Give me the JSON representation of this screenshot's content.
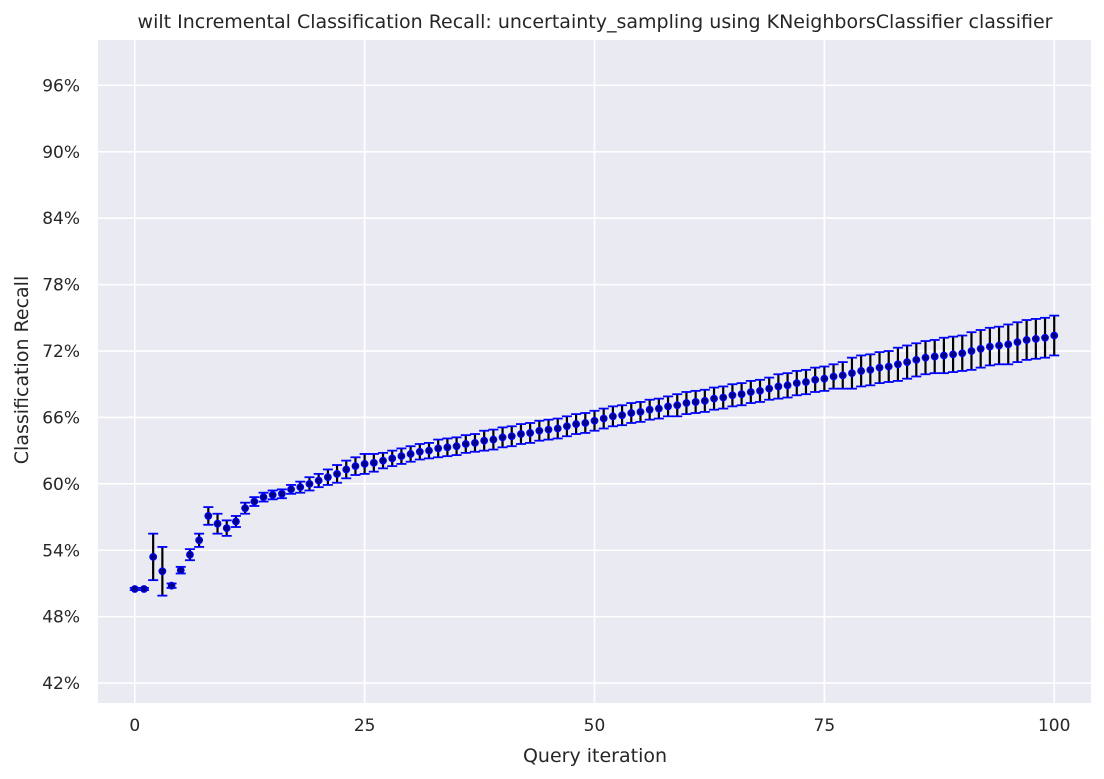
{
  "chart_data": {
    "type": "scatter",
    "title": "wilt Incremental Classification Recall: uncertainty_sampling using KNeighborsClassifier classifier",
    "xlabel": "Query iteration",
    "ylabel": "Classification Recall",
    "xlim": [
      -4,
      104
    ],
    "ylim": [
      40.2,
      100.1
    ],
    "x_ticks": [
      0,
      25,
      50,
      75,
      100
    ],
    "x_tick_labels": [
      "0",
      "25",
      "50",
      "75",
      "100"
    ],
    "y_ticks": [
      42,
      48,
      54,
      60,
      66,
      72,
      78,
      84,
      90,
      96
    ],
    "y_tick_labels": [
      "42%",
      "48%",
      "54%",
      "60%",
      "66%",
      "72%",
      "78%",
      "84%",
      "90%",
      "96%"
    ],
    "grid": true,
    "legend": "none",
    "colors": {
      "background": "#eaeaf2",
      "grid": "#ffffff",
      "error_bar": "#000000",
      "cap": "#0000ff",
      "marker": "#00008b",
      "marker_edge": "#0000ff"
    },
    "series": [
      {
        "x": [
          0,
          1,
          2,
          3,
          4,
          5,
          6,
          7,
          8,
          9,
          10,
          11,
          12,
          13,
          14,
          15,
          16,
          17,
          18,
          19,
          20,
          21,
          22,
          23,
          24,
          25,
          26,
          27,
          28,
          29,
          30,
          31,
          32,
          33,
          34,
          35,
          36,
          37,
          38,
          39,
          40,
          41,
          42,
          43,
          44,
          45,
          46,
          47,
          48,
          49,
          50,
          51,
          52,
          53,
          54,
          55,
          56,
          57,
          58,
          59,
          60,
          61,
          62,
          63,
          64,
          65,
          66,
          67,
          68,
          69,
          70,
          71,
          72,
          73,
          74,
          75,
          76,
          77,
          78,
          79,
          80,
          81,
          82,
          83,
          84,
          85,
          86,
          87,
          88,
          89,
          90,
          91,
          92,
          93,
          94,
          95,
          96,
          97,
          98,
          99,
          100
        ],
        "values": [
          50.5,
          50.5,
          53.4,
          52.1,
          50.8,
          52.2,
          53.6,
          54.9,
          57.1,
          56.4,
          56.0,
          56.6,
          57.8,
          58.4,
          58.8,
          59.0,
          59.1,
          59.5,
          59.7,
          60.0,
          60.3,
          60.6,
          60.9,
          61.3,
          61.6,
          61.8,
          61.9,
          62.1,
          62.3,
          62.5,
          62.7,
          62.9,
          63.0,
          63.2,
          63.3,
          63.4,
          63.6,
          63.7,
          63.9,
          64.0,
          64.2,
          64.3,
          64.5,
          64.6,
          64.8,
          64.9,
          65.0,
          65.2,
          65.4,
          65.5,
          65.7,
          65.9,
          66.1,
          66.2,
          66.4,
          66.5,
          66.7,
          66.8,
          67.0,
          67.1,
          67.3,
          67.4,
          67.5,
          67.7,
          67.8,
          68.0,
          68.1,
          68.3,
          68.4,
          68.6,
          68.8,
          68.9,
          69.1,
          69.2,
          69.4,
          69.5,
          69.7,
          69.8,
          70.0,
          70.2,
          70.3,
          70.5,
          70.6,
          70.8,
          71.0,
          71.2,
          71.4,
          71.5,
          71.6,
          71.7,
          71.8,
          72.0,
          72.2,
          72.4,
          72.5,
          72.6,
          72.8,
          73.0,
          73.1,
          73.2,
          73.4
        ],
        "errors": [
          0.1,
          0.1,
          2.1,
          2.2,
          0.2,
          0.3,
          0.5,
          0.6,
          0.8,
          0.9,
          0.7,
          0.5,
          0.5,
          0.4,
          0.4,
          0.4,
          0.4,
          0.4,
          0.5,
          0.6,
          0.6,
          0.7,
          0.8,
          0.8,
          0.8,
          0.9,
          0.8,
          0.7,
          0.7,
          0.7,
          0.7,
          0.7,
          0.7,
          0.8,
          0.8,
          0.8,
          0.8,
          0.8,
          0.9,
          0.9,
          0.9,
          0.9,
          0.9,
          0.9,
          0.9,
          0.9,
          0.9,
          0.9,
          0.9,
          0.9,
          0.9,
          0.9,
          0.9,
          0.9,
          0.9,
          0.9,
          0.9,
          0.9,
          0.9,
          1.0,
          1.0,
          1.0,
          1.0,
          1.0,
          1.0,
          1.0,
          1.0,
          1.0,
          1.0,
          1.0,
          1.1,
          1.1,
          1.1,
          1.1,
          1.1,
          1.1,
          1.1,
          1.2,
          1.4,
          1.4,
          1.4,
          1.4,
          1.4,
          1.5,
          1.5,
          1.5,
          1.5,
          1.5,
          1.6,
          1.6,
          1.6,
          1.7,
          1.7,
          1.7,
          1.7,
          1.8,
          1.8,
          1.8,
          1.8,
          1.8,
          1.8
        ]
      }
    ]
  }
}
